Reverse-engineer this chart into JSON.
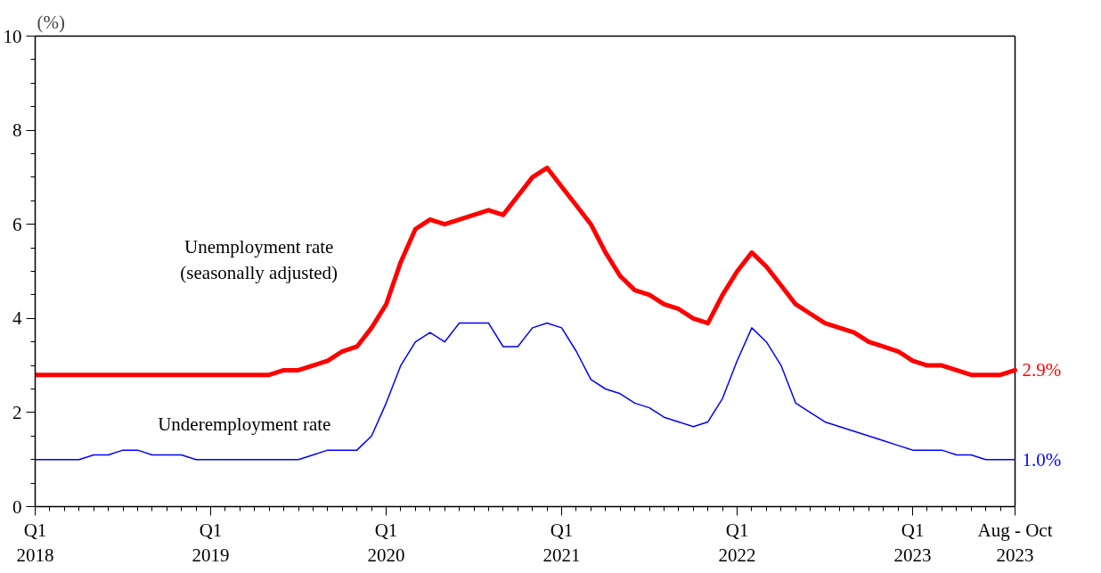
{
  "chart_data": {
    "type": "line",
    "ylabel": "(%)",
    "categories": [
      "Q1\n2018",
      null,
      null,
      null,
      null,
      null,
      null,
      null,
      null,
      null,
      null,
      null,
      "Q1\n2019",
      null,
      null,
      null,
      null,
      null,
      null,
      null,
      null,
      null,
      null,
      null,
      "Q1\n2020",
      null,
      null,
      null,
      null,
      null,
      null,
      null,
      null,
      null,
      null,
      null,
      "Q1\n2021",
      null,
      null,
      null,
      null,
      null,
      null,
      null,
      null,
      null,
      null,
      null,
      "Q1\n2022",
      null,
      null,
      null,
      null,
      null,
      null,
      null,
      null,
      null,
      null,
      null,
      "Q1\n2023",
      null,
      null,
      null,
      null,
      null,
      null,
      "Aug - Oct\n2023"
    ],
    "ylim": [
      0,
      10
    ],
    "yticks": [
      0,
      2,
      4,
      6,
      8,
      10
    ],
    "grid": false,
    "marker": "none",
    "line_style": "solid",
    "series": [
      {
        "name": "Unemployment rate\n(seasonally adjusted)",
        "color": "#ff0000",
        "values": [
          2.8,
          2.8,
          2.8,
          2.8,
          2.8,
          2.8,
          2.8,
          2.8,
          2.8,
          2.8,
          2.8,
          2.8,
          2.8,
          2.8,
          2.8,
          2.8,
          2.8,
          2.9,
          2.9,
          3.0,
          3.1,
          3.3,
          3.4,
          3.8,
          4.3,
          5.2,
          5.9,
          6.1,
          6.0,
          6.1,
          6.2,
          6.3,
          6.2,
          6.6,
          7.0,
          7.2,
          6.8,
          6.4,
          6.0,
          5.4,
          4.9,
          4.6,
          4.5,
          4.3,
          4.2,
          4.0,
          3.9,
          4.5,
          5.0,
          5.4,
          5.1,
          4.7,
          4.3,
          4.1,
          3.9,
          3.8,
          3.7,
          3.5,
          3.4,
          3.3,
          3.1,
          3.0,
          3.0,
          2.9,
          2.8,
          2.8,
          2.8,
          2.9
        ],
        "value_labels": [
          null,
          null,
          null,
          null,
          null,
          null,
          null,
          null,
          null,
          null,
          null,
          null,
          null,
          null,
          null,
          null,
          null,
          null,
          null,
          null,
          null,
          null,
          null,
          null,
          null,
          null,
          null,
          null,
          null,
          null,
          null,
          null,
          null,
          null,
          null,
          null,
          null,
          null,
          null,
          null,
          null,
          null,
          null,
          null,
          null,
          null,
          null,
          null,
          null,
          null,
          null,
          null,
          null,
          null,
          null,
          null,
          null,
          null,
          null,
          null,
          null,
          null,
          null,
          null,
          null,
          null,
          null,
          "2.9%"
        ]
      },
      {
        "name": "Underemployment rate",
        "color": "#0000ff",
        "values": [
          1.0,
          1.0,
          1.0,
          1.0,
          1.1,
          1.1,
          1.2,
          1.2,
          1.1,
          1.1,
          1.1,
          1.0,
          1.0,
          1.0,
          1.0,
          1.0,
          1.0,
          1.0,
          1.0,
          1.1,
          1.2,
          1.2,
          1.2,
          1.5,
          2.2,
          3.0,
          3.5,
          3.7,
          3.5,
          3.9,
          3.9,
          3.9,
          3.4,
          3.4,
          3.8,
          3.9,
          3.8,
          3.3,
          2.7,
          2.5,
          2.4,
          2.2,
          2.1,
          1.9,
          1.8,
          1.7,
          1.8,
          2.3,
          3.1,
          3.8,
          3.5,
          3.0,
          2.2,
          2.0,
          1.8,
          1.7,
          1.6,
          1.5,
          1.4,
          1.3,
          1.2,
          1.2,
          1.2,
          1.1,
          1.1,
          1.0,
          1.0,
          1.0
        ],
        "value_labels": [
          null,
          null,
          null,
          null,
          null,
          null,
          null,
          null,
          null,
          null,
          null,
          null,
          null,
          null,
          null,
          null,
          null,
          null,
          null,
          null,
          null,
          null,
          null,
          null,
          null,
          null,
          null,
          null,
          null,
          null,
          null,
          null,
          null,
          null,
          null,
          null,
          null,
          null,
          null,
          null,
          null,
          null,
          null,
          null,
          null,
          null,
          null,
          null,
          null,
          null,
          null,
          null,
          null,
          null,
          null,
          null,
          null,
          null,
          null,
          null,
          null,
          null,
          null,
          null,
          null,
          null,
          null,
          "1.0%"
        ]
      }
    ]
  }
}
